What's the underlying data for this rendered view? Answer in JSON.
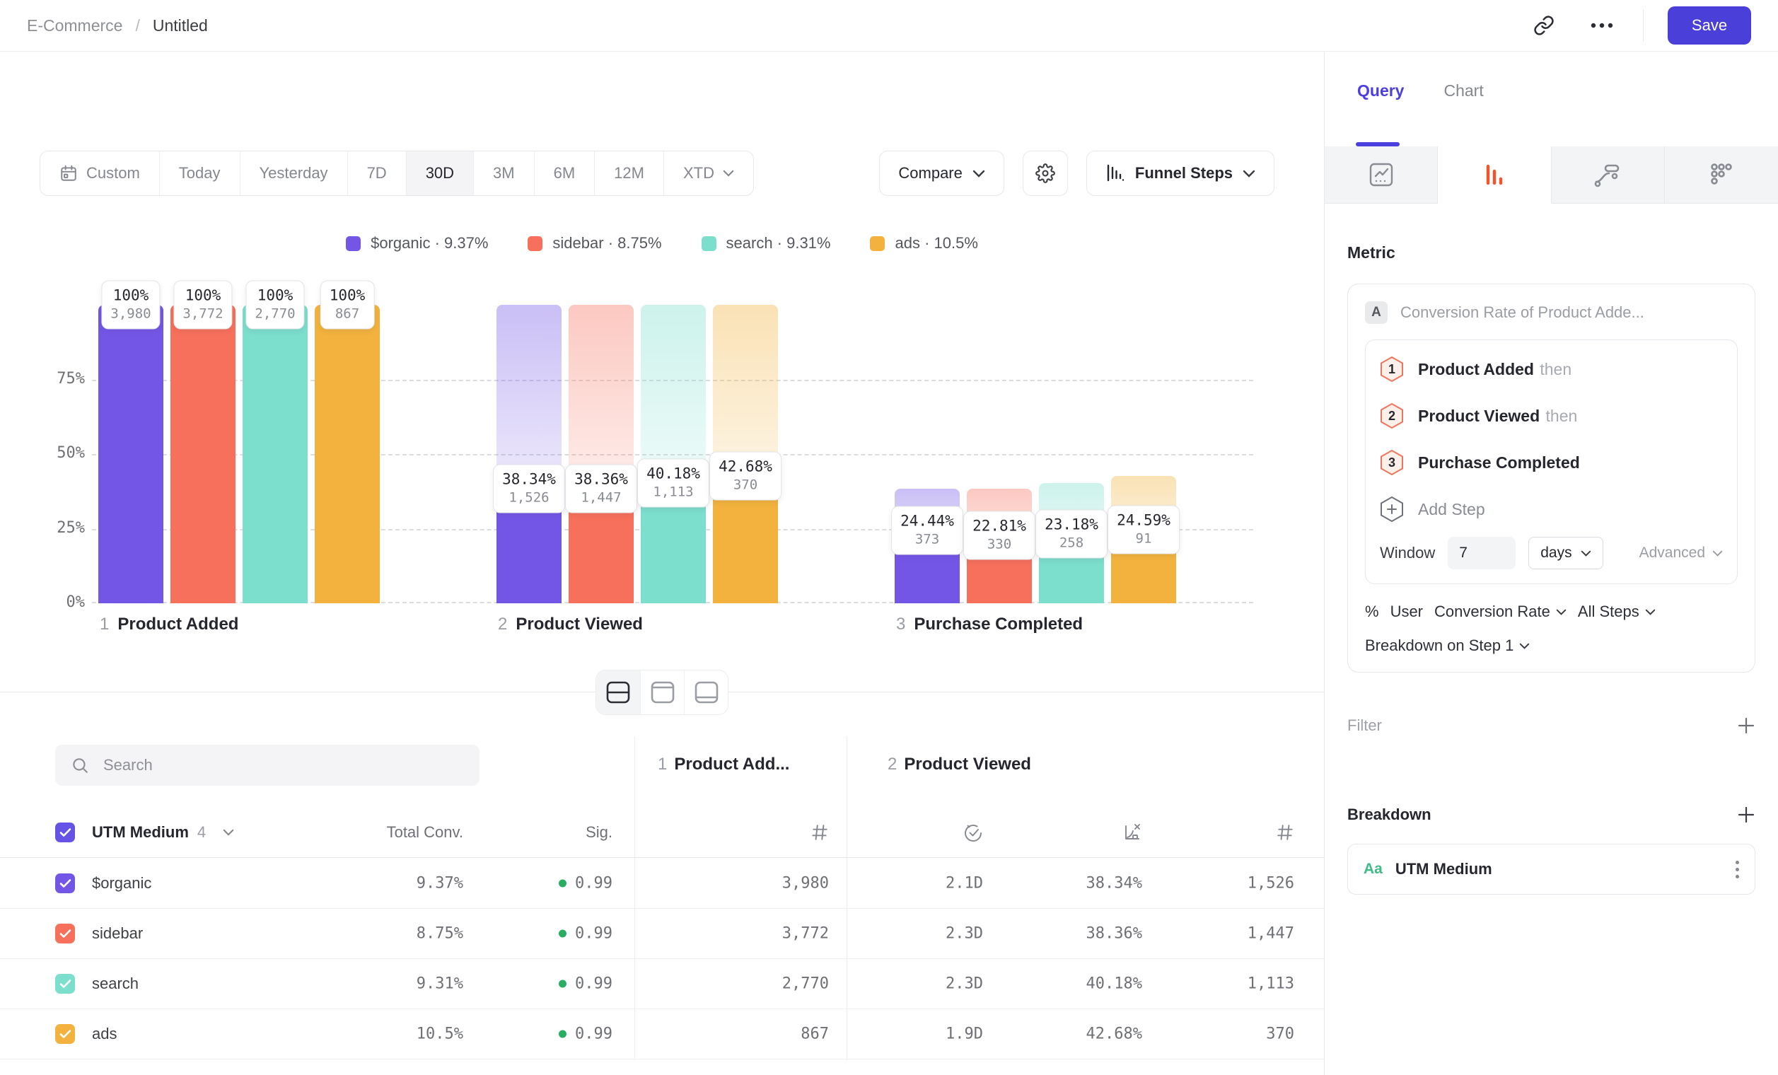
{
  "header": {
    "breadcrumb": {
      "root": "E-Commerce",
      "separator": "/",
      "current": "Untitled"
    },
    "save_label": "Save"
  },
  "toolbar": {
    "date_ranges": [
      "Custom",
      "Today",
      "Yesterday",
      "7D",
      "30D",
      "3M",
      "6M",
      "12M",
      "XTD"
    ],
    "active_range": "30D",
    "compare_label": "Compare",
    "chart_type_label": "Funnel Steps"
  },
  "legend": [
    {
      "name": "$organic",
      "rate": "9.37%",
      "color": "#7456E6"
    },
    {
      "name": "sidebar",
      "rate": "8.75%",
      "color": "#F7705C"
    },
    {
      "name": "search",
      "rate": "9.31%",
      "color": "#7CDECD"
    },
    {
      "name": "ads",
      "rate": "10.5%",
      "color": "#F2B23D"
    }
  ],
  "chart_data": {
    "type": "bar",
    "subtype": "grouped-funnel-steps",
    "title": "",
    "xlabel": "",
    "ylabel": "",
    "ylim": [
      0,
      100
    ],
    "y_ticks": [
      {
        "pct": 75,
        "label": "75%"
      },
      {
        "pct": 50,
        "label": "50%"
      },
      {
        "pct": 25,
        "label": "25%"
      },
      {
        "pct": 0,
        "label": "0%"
      }
    ],
    "grid": "dashed-horizontal",
    "legend_position": "top-center",
    "steps": [
      {
        "num": "1",
        "label": "Product Added"
      },
      {
        "num": "2",
        "label": "Product Viewed"
      },
      {
        "num": "3",
        "label": "Purchase Completed"
      }
    ],
    "series": [
      {
        "name": "$organic",
        "color": "#7456E6",
        "pct": [
          100,
          38.34,
          24.44
        ],
        "pct_labels": [
          "100%",
          "38.34%",
          "24.44%"
        ],
        "counts": [
          "3,980",
          "1,526",
          "373"
        ]
      },
      {
        "name": "sidebar",
        "color": "#F7705C",
        "pct": [
          100,
          38.36,
          22.81
        ],
        "pct_labels": [
          "100%",
          "38.36%",
          "22.81%"
        ],
        "counts": [
          "3,772",
          "1,447",
          "330"
        ]
      },
      {
        "name": "search",
        "color": "#7CDECD",
        "pct": [
          100,
          40.18,
          23.18
        ],
        "pct_labels": [
          "100%",
          "40.18%",
          "23.18%"
        ],
        "counts": [
          "2,770",
          "1,113",
          "258"
        ]
      },
      {
        "name": "ads",
        "color": "#F2B23D",
        "pct": [
          100,
          42.68,
          24.59
        ],
        "pct_labels": [
          "100%",
          "42.68%",
          "24.59%"
        ],
        "counts": [
          "867",
          "370",
          "91"
        ]
      }
    ]
  },
  "table": {
    "search_placeholder": "Search",
    "group_header": {
      "label": "UTM Medium",
      "count": "4"
    },
    "summary_columns": {
      "total_conv": "Total Conv.",
      "sig": "Sig."
    },
    "step_headers": [
      {
        "num": "1",
        "label": "Product Add..."
      },
      {
        "num": "2",
        "label": "Product Viewed"
      }
    ],
    "rows": [
      {
        "name": "$organic",
        "color": "#7456E6",
        "total_conv": "9.37%",
        "sig": "0.99",
        "step1_count": "3,980",
        "step2_time": "2.1D",
        "step2_rate": "38.34%",
        "step2_count": "1,526"
      },
      {
        "name": "sidebar",
        "color": "#F7705C",
        "total_conv": "8.75%",
        "sig": "0.99",
        "step1_count": "3,772",
        "step2_time": "2.3D",
        "step2_rate": "38.36%",
        "step2_count": "1,447"
      },
      {
        "name": "search",
        "color": "#7CDECD",
        "total_conv": "9.31%",
        "sig": "0.99",
        "step1_count": "2,770",
        "step2_time": "2.3D",
        "step2_rate": "40.18%",
        "step2_count": "1,113"
      },
      {
        "name": "ads",
        "color": "#F2B23D",
        "total_conv": "10.5%",
        "sig": "0.99",
        "step1_count": "867",
        "step2_time": "1.9D",
        "step2_rate": "42.68%",
        "step2_count": "370"
      }
    ]
  },
  "panel": {
    "tabs": {
      "query": "Query",
      "chart": "Chart"
    },
    "active_tab": "Query",
    "metric_heading": "Metric",
    "metric": {
      "badge": "A",
      "title": "Conversion Rate of Product Adde...",
      "steps": [
        {
          "num": "1",
          "label": "Product Added",
          "suffix": "then"
        },
        {
          "num": "2",
          "label": "Product Viewed",
          "suffix": "then"
        },
        {
          "num": "3",
          "label": "Purchase Completed",
          "suffix": ""
        }
      ],
      "add_step_label": "Add Step",
      "window_label": "Window",
      "window_value": "7",
      "window_unit": "days",
      "advanced_label": "Advanced",
      "measured_symbol": "%",
      "measured_entity": "User",
      "measure_dropdown": "Conversion Rate",
      "steps_dropdown": "All Steps",
      "breakdown_on_label": "Breakdown on Step 1"
    },
    "filter_label": "Filter",
    "breakdown_label": "Breakdown",
    "breakdown_item": {
      "type_icon": "Aa",
      "label": "UTM Medium"
    }
  },
  "colors": {
    "accent": "#4B3FD9",
    "query_tab": "#4B3FE0",
    "funnel_tab_icon": "#F4542C",
    "sig_green": "#27AE60",
    "aa_green": "#3DBD83",
    "step_hex_stroke": "#F0765B",
    "step_hex_fill": "#FDEFEA"
  }
}
